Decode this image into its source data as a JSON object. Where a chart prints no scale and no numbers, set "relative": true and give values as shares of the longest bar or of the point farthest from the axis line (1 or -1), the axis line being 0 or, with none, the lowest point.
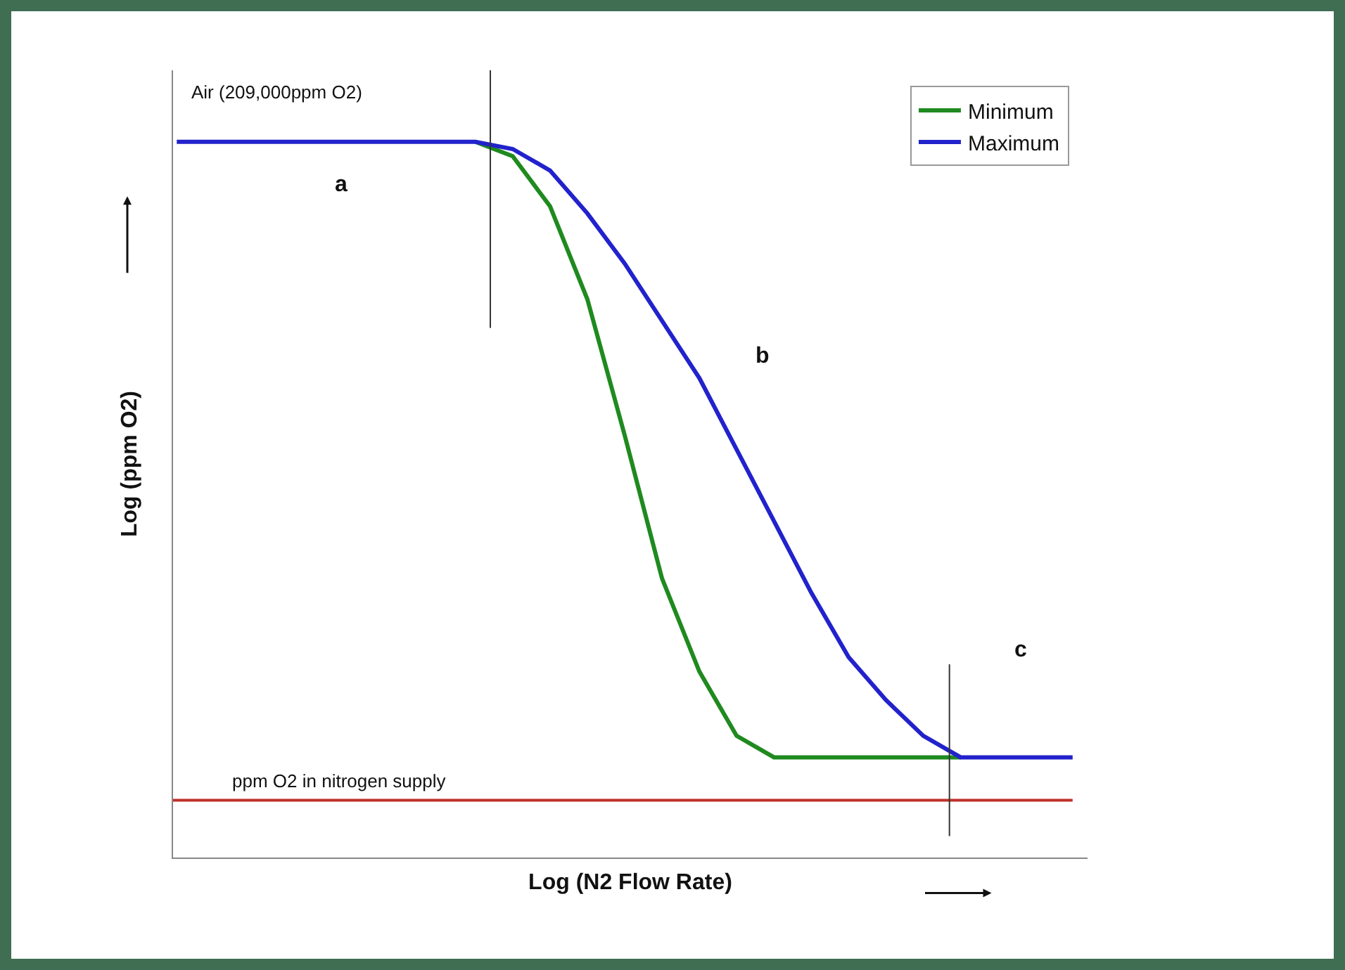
{
  "chart_data": {
    "type": "line",
    "relative": true,
    "xlabel": "Log (N2 Flow Rate)",
    "ylabel": "Log (ppm O2)",
    "categories": [
      null,
      null,
      null,
      null,
      null,
      null,
      null,
      null,
      null,
      null,
      null,
      null,
      null,
      null,
      null,
      null,
      null,
      null,
      null,
      null,
      null,
      null,
      null,
      null,
      null
    ],
    "series": [
      {
        "name": "Minimum",
        "color": "#1f8a1f",
        "values": [
          null,
          null,
          null,
          null,
          null,
          null,
          null,
          null,
          1,
          0.98,
          0.91,
          0.78,
          0.59,
          0.39,
          0.26,
          0.17,
          0.14,
          0.14,
          0.14,
          0.14,
          0.14,
          0.14,
          null,
          null,
          null
        ]
      },
      {
        "name": "Maximum",
        "color": "#2222cc",
        "values": [
          1,
          1,
          1,
          1,
          1,
          1,
          1,
          1,
          1,
          0.99,
          0.96,
          0.9,
          0.83,
          0.75,
          0.67,
          0.57,
          0.47,
          0.37,
          0.28,
          0.22,
          0.17,
          0.14,
          0.14,
          0.14,
          0.14
        ]
      }
    ],
    "ref_lines": [
      {
        "axis": "y",
        "value": 0.08,
        "label": "ppm O2 in nitrogen supply",
        "color": "#c0302a"
      }
    ],
    "annotations": [
      "Air (209,000ppm O2)",
      "a",
      "b",
      "c"
    ],
    "legend": "top right",
    "marker": "none",
    "line_style": "solid"
  }
}
